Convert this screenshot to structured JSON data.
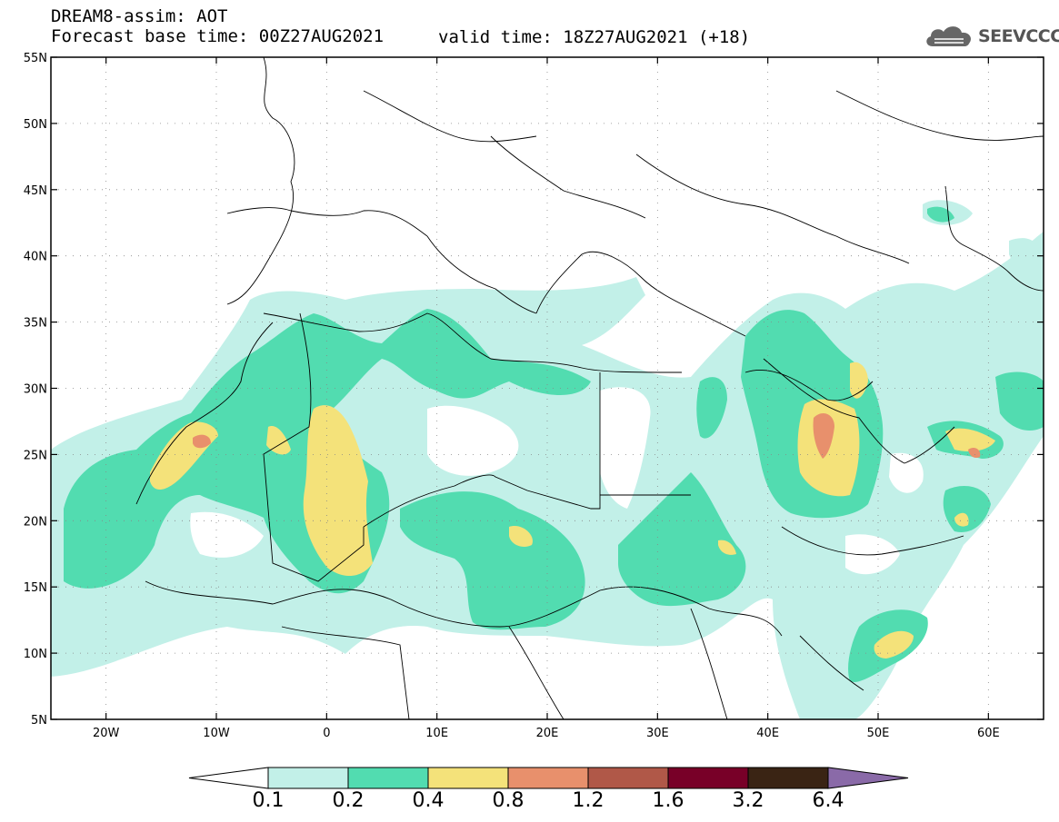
{
  "header": {
    "title": "DREAM8-assim: AOT",
    "forecast_base": "Forecast base time: 00Z27AUG2021",
    "valid_time": "valid time: 18Z27AUG2021 (+18)"
  },
  "logo": {
    "text": "SEEVCCC",
    "icon": "cloud-icon"
  },
  "map": {
    "lon_range": [
      -25,
      65
    ],
    "lat_range": [
      5,
      55
    ],
    "lat_ticks": [
      {
        "value": 5,
        "label": "5N"
      },
      {
        "value": 10,
        "label": "10N"
      },
      {
        "value": 15,
        "label": "15N"
      },
      {
        "value": 20,
        "label": "20N"
      },
      {
        "value": 25,
        "label": "25N"
      },
      {
        "value": 30,
        "label": "30N"
      },
      {
        "value": 35,
        "label": "35N"
      },
      {
        "value": 40,
        "label": "40N"
      },
      {
        "value": 45,
        "label": "45N"
      },
      {
        "value": 50,
        "label": "50N"
      },
      {
        "value": 55,
        "label": "55N"
      }
    ],
    "lon_ticks": [
      {
        "value": -20,
        "label": "20W"
      },
      {
        "value": -10,
        "label": "10W"
      },
      {
        "value": 0,
        "label": "0"
      },
      {
        "value": 10,
        "label": "10E"
      },
      {
        "value": 20,
        "label": "20E"
      },
      {
        "value": 30,
        "label": "30E"
      },
      {
        "value": 40,
        "label": "40E"
      },
      {
        "value": 50,
        "label": "50E"
      },
      {
        "value": 60,
        "label": "60E"
      }
    ]
  },
  "colorbar": {
    "labels": [
      "0.1",
      "0.2",
      "0.4",
      "0.8",
      "1.2",
      "1.6",
      "3.2",
      "6.4"
    ],
    "colors": [
      "#c2f0e8",
      "#52dcb0",
      "#f4e27a",
      "#e8906c",
      "#b05848",
      "#780028",
      "#3a2414",
      "#8a6aa8"
    ],
    "under_color": "#ffffff",
    "over_color": "#8a6aa8"
  }
}
